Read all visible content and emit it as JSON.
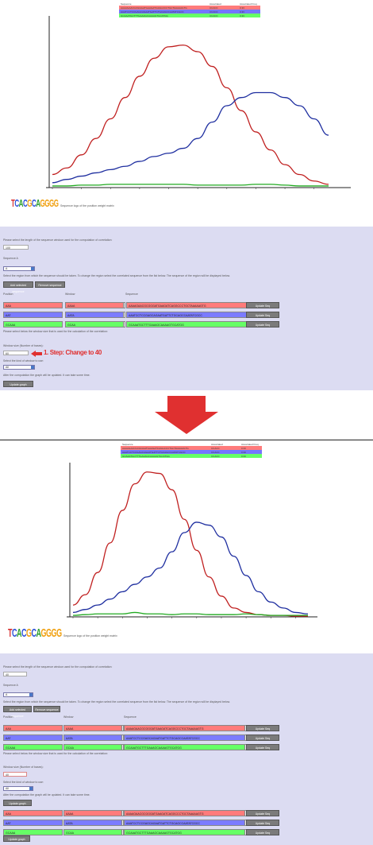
{
  "top": {
    "legend": {
      "headers": [
        "Sequence",
        "Associated",
        "Associated Freq"
      ],
      "rows": [
        {
          "sequence": "AAAAGAACGCGGGATGAAGATCAGGCCCTGCTAAAAAGTG",
          "col2": "CCACC",
          "col3": "0.33",
          "color": "#ff7b7b"
        },
        {
          "sequence": "AAATCCTCCGAGCAGAATGATTCTGCAGCCAATATCGCC",
          "col2": "CCACC",
          "col3": "0.33",
          "color": "#7575ff"
        },
        {
          "sequence": "GCAAATGCTTTGAAAGCAAAAGTGCATGG",
          "col2": "CCACC",
          "col3": "0.33",
          "color": "#66ff66"
        }
      ]
    },
    "chart_data": {
      "type": "line",
      "x": [
        1,
        2,
        3,
        4,
        5,
        6,
        7,
        8,
        9,
        10,
        11,
        12,
        13,
        14,
        15,
        16,
        17,
        18,
        19,
        20
      ],
      "series": [
        {
          "values": [
            0.08,
            0.12,
            0.2,
            0.3,
            0.42,
            0.55,
            0.68,
            0.79,
            0.86,
            0.87,
            0.83,
            0.74,
            0.61,
            0.47,
            0.34,
            0.23,
            0.14,
            0.08,
            0.04,
            0.02
          ],
          "color": "#c02020"
        },
        {
          "values": [
            0.03,
            0.05,
            0.07,
            0.09,
            0.11,
            0.13,
            0.16,
            0.19,
            0.21,
            0.24,
            0.3,
            0.4,
            0.5,
            0.55,
            0.58,
            0.58,
            0.55,
            0.5,
            0.42,
            0.32
          ],
          "color": "#1f2fa0"
        },
        {
          "values": [
            0.01,
            0.01,
            0.015,
            0.015,
            0.02,
            0.02,
            0.02,
            0.02,
            0.02,
            0.02,
            0.015,
            0.015,
            0.015,
            0.015,
            0.02,
            0.02,
            0.015,
            0.01,
            0.01,
            0.01
          ],
          "color": "#22aa22"
        }
      ],
      "ylim": [
        0,
        1
      ],
      "grid": false
    },
    "logo_letters": "TCACGCAGGGG",
    "logo_caption": "Sequence logo of the position weight matrix",
    "form": {
      "q1": "Please select the length of the sequence window used for the computation of correlation:",
      "window_value": "100",
      "q2": "Sequence A",
      "select_value": "A",
      "q3": "Select the region from which the sequence should be taken. To change the region select the correlated sequence from the list below. The sequence of the region will be displayed below.",
      "btn_a": "Add selected sequence",
      "btn_b": "Remove sequence",
      "col_a": "Position",
      "col_b": "Window",
      "col_c": "Sequence",
      "filters": [
        {
          "pos": "AAA",
          "win": "AAAA",
          "seq": "AAAAGAACGCGGGATGAAGATCAGGCCCTGCTAAAAAGTG",
          "btn": "Update Seq",
          "color": "red"
        },
        {
          "pos": "AAT",
          "win": "AATA",
          "seq": "AAATCCTCCGAGCAGAATGATTCTGCAGCCAATATCGCC",
          "btn": "Update Seq",
          "color": "blue"
        },
        {
          "pos": "GCAAA",
          "win": "GCAA",
          "seq": "GCAAATGCTTTGAAAGCAAAAGTGCATGG",
          "btn": "Update Seq",
          "color": "green"
        }
      ],
      "q4": "Please select below the window size that is used for the calculation of the correlation:",
      "q5": "Window size (Number of bases):",
      "size_value": "60",
      "step_label": "1. Step: Change to 40",
      "q6": "Select the kind of window to use:",
      "kind_value": "All",
      "q7": "After the computation the graph will be updated. It can take some time.",
      "update_btn": "Update graph"
    }
  },
  "bottom": {
    "legend": {
      "headers": [
        "Sequence",
        "Associated",
        "Associated Freq"
      ],
      "rows": [
        {
          "sequence": "AAAAGAACGCGGGATGAAGATCAGGCCCTGCTAAAAAGTG",
          "col2": "CCACC",
          "col3": "0.33",
          "color": "#ff7b7b"
        },
        {
          "sequence": "AAATCCTCCGAGCAGAATGATTCTGCAGCCAATATCGCC",
          "col2": "CCACC",
          "col3": "0.33",
          "color": "#7575ff"
        },
        {
          "sequence": "GCAAATGCTTTGAAAGCAAAAGTGCATGG",
          "col2": "CCACC",
          "col3": "0.33",
          "color": "#66ff66"
        }
      ]
    },
    "chart_data": {
      "type": "line",
      "x": [
        1,
        2,
        3,
        4,
        5,
        6,
        7,
        8,
        9,
        10,
        11,
        12,
        13,
        14,
        15,
        16,
        17,
        18,
        19,
        20
      ],
      "series": [
        {
          "values": [
            0.08,
            0.15,
            0.3,
            0.5,
            0.72,
            0.9,
            0.98,
            0.97,
            0.86,
            0.66,
            0.45,
            0.27,
            0.14,
            0.06,
            0.03,
            0.015,
            0.01,
            0.01,
            0.005,
            0.005
          ],
          "color": "#c02020"
        },
        {
          "values": [
            0.03,
            0.05,
            0.08,
            0.12,
            0.17,
            0.22,
            0.27,
            0.33,
            0.44,
            0.57,
            0.64,
            0.62,
            0.54,
            0.41,
            0.28,
            0.17,
            0.1,
            0.06,
            0.03,
            0.02
          ],
          "color": "#1f2fa0"
        },
        {
          "values": [
            0.01,
            0.015,
            0.02,
            0.02,
            0.02,
            0.03,
            0.02,
            0.02,
            0.015,
            0.02,
            0.02,
            0.015,
            0.015,
            0.015,
            0.02,
            0.015,
            0.01,
            0.01,
            0.01,
            0.01
          ],
          "color": "#22aa22"
        }
      ],
      "ylim": [
        0,
        1
      ],
      "grid": false
    },
    "logo_letters": "TCACGCAGGGG",
    "logo_caption": "Sequence logo of the position weight matrix",
    "form": {
      "q1": "Please select the length of the sequence window used for the computation of correlation:",
      "window_value": "40",
      "q2": "Sequence A",
      "select_value": "A",
      "q3": "Select the region from which the sequence should be taken. To change the region select the correlated sequence from the list below. The sequence of the region will be displayed below.",
      "btn_a": "Add selected sequence",
      "btn_b": "Remove sequence",
      "col_a": "Position",
      "col_b": "Window",
      "col_c": "Sequence",
      "filters": [
        {
          "pos": "AAA",
          "win": "AAAA",
          "seq": "AAAAGAACGCGGGATGAAGATCAGGCCCTGCTAAAAAGTG",
          "btn": "Update Seq",
          "color": "red"
        },
        {
          "pos": "AAT",
          "win": "AATA",
          "seq": "AAATCCTCCGAGCAGAATGATTCTGCAGCCAATATCGCC",
          "btn": "Update Seq",
          "color": "blue"
        },
        {
          "pos": "GCAAA",
          "win": "GCAA",
          "seq": "GCAAATGCTTTGAAAGCAAAAGTGCATGG",
          "btn": "Update Seq",
          "color": "green"
        }
      ],
      "q4": "Please select below the window size that is used for the calculation of the correlation:",
      "q5": "Window size (Number of bases):",
      "size_value": "40",
      "q6": "Select the kind of window to use:",
      "kind_value": "All",
      "q7": "After the computation the graph will be updated. It can take some time.",
      "update_btn": "Update graph",
      "filters2": [
        {
          "pos": "AAA",
          "win": "AAAA",
          "seq": "AAAAGAACGCGGGATGAAGATCAGGCCCTGCTAAAAAGTG",
          "btn": "Update Seq",
          "color": "red"
        },
        {
          "pos": "AAT",
          "win": "AATA",
          "seq": "AAATCCTCCGAGCAGAATGATTCTGCAGCCAATATCGCC",
          "btn": "Update Seq",
          "color": "blue"
        },
        {
          "pos": "GCAAA",
          "win": "GCAA",
          "seq": "GCAAATGCTTTGAAAGCAAAAGTGCATGG",
          "btn": "Update Seq",
          "color": "green"
        }
      ],
      "final_btn": "Update graph"
    }
  },
  "arrow_color": "#e03030"
}
